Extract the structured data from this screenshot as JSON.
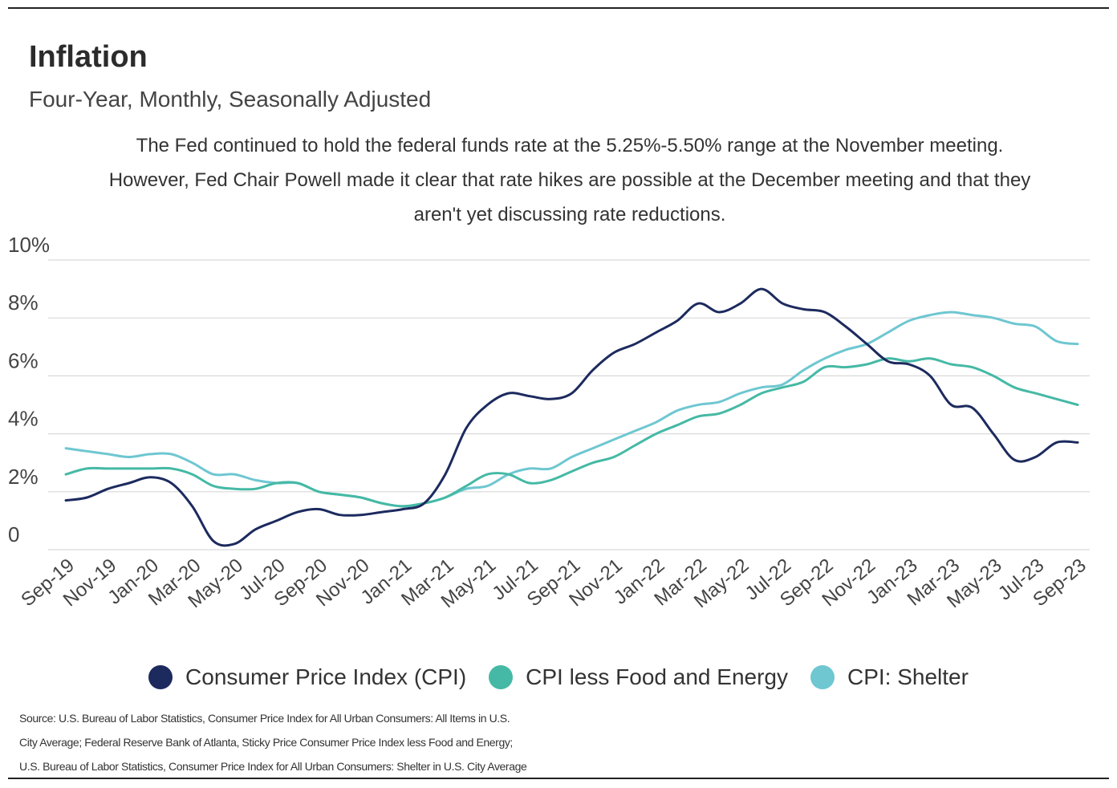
{
  "header": {
    "title": "Inflation",
    "subtitle": "Four-Year, Monthly, Seasonally Adjusted",
    "description": "The Fed continued to hold the federal funds rate at the 5.25%-5.50% range at the November meeting. However, Fed Chair Powell made it clear that rate hikes are possible at the December meeting and that they aren't yet discussing rate reductions."
  },
  "source": {
    "lines": [
      "Source:  U.S. Bureau of Labor Statistics, Consumer Price Index for All Urban Consumers: All Items in U.S.",
      "City Average; Federal Reserve Bank of Atlanta, Sticky Price Consumer Price Index less Food and Energy;",
      "U.S. Bureau of Labor Statistics, Consumer Price Index for All Urban Consumers: Shelter in U.S. City Average"
    ]
  },
  "colors": {
    "grid": "#d9d9d9",
    "axis_text": "#444444"
  },
  "chart_data": {
    "type": "line",
    "y_tick_labels": [
      "0",
      "2%",
      "4%",
      "6%",
      "8%",
      "10%"
    ],
    "y_ticks": [
      0,
      2,
      4,
      6,
      8,
      10
    ],
    "ylim": [
      0,
      10
    ],
    "grid": true,
    "legend_position": "bottom",
    "x_tick_labels": [
      "Sep-19",
      "Nov-19",
      "Jan-20",
      "Mar-20",
      "May-20",
      "Jul-20",
      "Sep-20",
      "Nov-20",
      "Jan-21",
      "Mar-21",
      "May-21",
      "Jul-21",
      "Sep-21",
      "Nov-21",
      "Jan-22",
      "Mar-22",
      "May-22",
      "Jul-22",
      "Sep-22",
      "Nov-22",
      "Jan-23",
      "Mar-23",
      "May-23",
      "Jul-23",
      "Sep-23"
    ],
    "x": [
      "Sep-19",
      "Oct-19",
      "Nov-19",
      "Dec-19",
      "Jan-20",
      "Feb-20",
      "Mar-20",
      "Apr-20",
      "May-20",
      "Jun-20",
      "Jul-20",
      "Aug-20",
      "Sep-20",
      "Oct-20",
      "Nov-20",
      "Dec-20",
      "Jan-21",
      "Feb-21",
      "Mar-21",
      "Apr-21",
      "May-21",
      "Jun-21",
      "Jul-21",
      "Aug-21",
      "Sep-21",
      "Oct-21",
      "Nov-21",
      "Dec-21",
      "Jan-22",
      "Feb-22",
      "Mar-22",
      "Apr-22",
      "May-22",
      "Jun-22",
      "Jul-22",
      "Aug-22",
      "Sep-22",
      "Oct-22",
      "Nov-22",
      "Dec-22",
      "Jan-23",
      "Feb-23",
      "Mar-23",
      "Apr-23",
      "May-23",
      "Jun-23",
      "Jul-23",
      "Aug-23",
      "Sep-23"
    ],
    "series": [
      {
        "name": "Consumer Price Index (CPI)",
        "color": "#1c2a5e",
        "values": [
          1.7,
          1.8,
          2.1,
          2.3,
          2.5,
          2.3,
          1.5,
          0.3,
          0.2,
          0.7,
          1.0,
          1.3,
          1.4,
          1.2,
          1.2,
          1.3,
          1.4,
          1.6,
          2.6,
          4.2,
          5.0,
          5.4,
          5.3,
          5.2,
          5.4,
          6.2,
          6.8,
          7.1,
          7.5,
          7.9,
          8.5,
          8.2,
          8.5,
          9.0,
          8.5,
          8.3,
          8.2,
          7.7,
          7.1,
          6.5,
          6.4,
          6.0,
          5.0,
          4.9,
          4.0,
          3.1,
          3.2,
          3.7,
          3.7
        ]
      },
      {
        "name": "CPI less Food and Energy",
        "color": "#45b9a5",
        "values": [
          2.6,
          2.8,
          2.8,
          2.8,
          2.8,
          2.8,
          2.6,
          2.2,
          2.1,
          2.1,
          2.3,
          2.3,
          2.0,
          1.9,
          1.8,
          1.6,
          1.5,
          1.6,
          1.8,
          2.2,
          2.6,
          2.6,
          2.3,
          2.4,
          2.7,
          3.0,
          3.2,
          3.6,
          4.0,
          4.3,
          4.6,
          4.7,
          5.0,
          5.4,
          5.6,
          5.8,
          6.3,
          6.3,
          6.4,
          6.6,
          6.5,
          6.6,
          6.4,
          6.3,
          6.0,
          5.6,
          5.4,
          5.2,
          5.0
        ]
      },
      {
        "name": "CPI: Shelter",
        "color": "#6ec7d1",
        "values": [
          3.5,
          3.4,
          3.3,
          3.2,
          3.3,
          3.3,
          3.0,
          2.6,
          2.6,
          2.4,
          2.3,
          2.3,
          2.0,
          1.9,
          1.8,
          1.6,
          1.5,
          1.6,
          1.8,
          2.1,
          2.2,
          2.6,
          2.8,
          2.8,
          3.2,
          3.5,
          3.8,
          4.1,
          4.4,
          4.8,
          5.0,
          5.1,
          5.4,
          5.6,
          5.7,
          6.2,
          6.6,
          6.9,
          7.1,
          7.5,
          7.9,
          8.1,
          8.2,
          8.1,
          8.0,
          7.8,
          7.7,
          7.2,
          7.1
        ]
      }
    ]
  }
}
